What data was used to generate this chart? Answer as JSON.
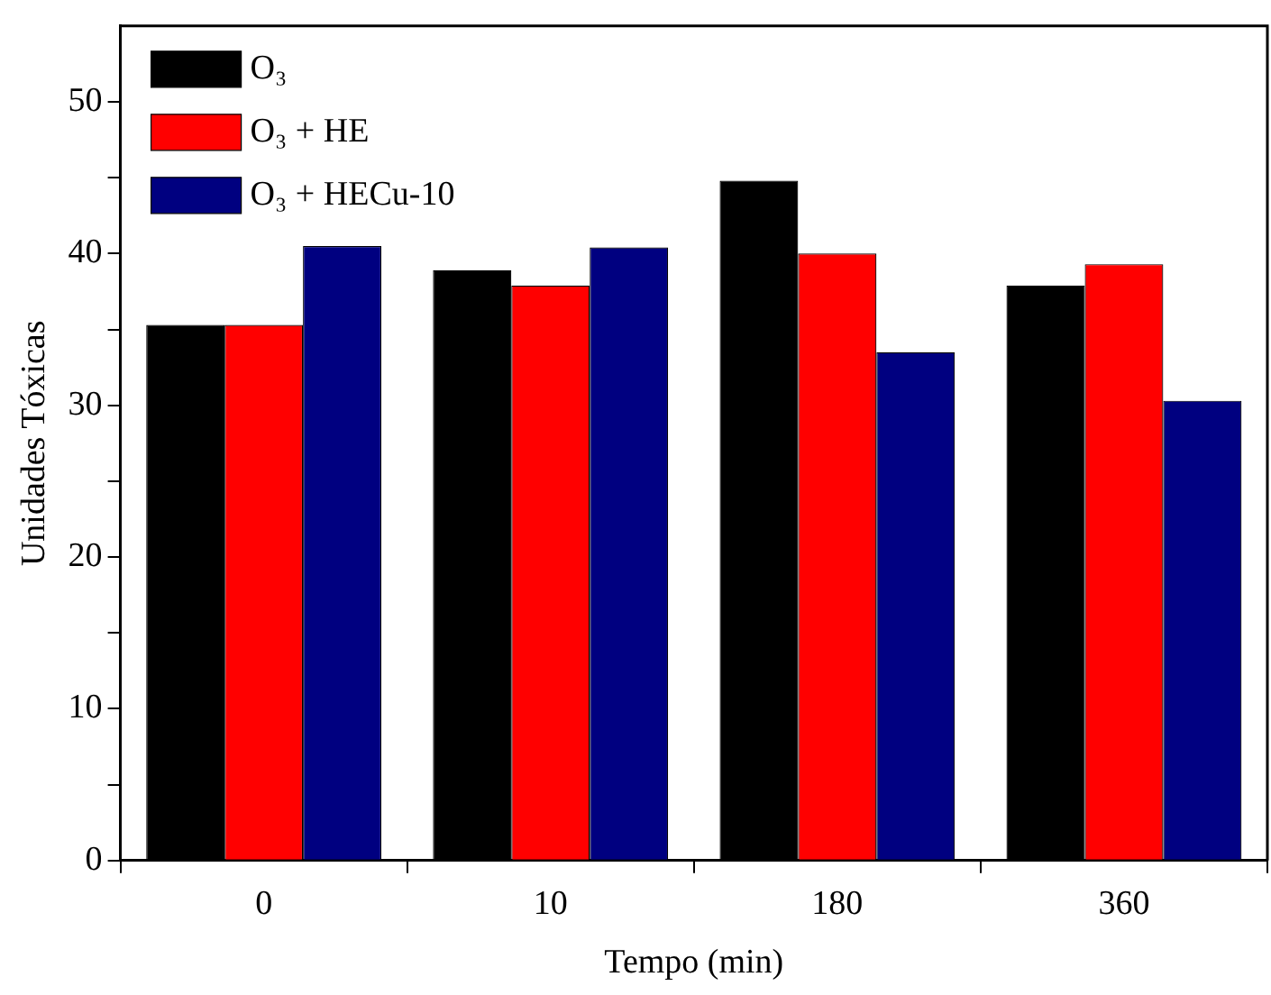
{
  "chart_data": {
    "type": "bar",
    "xlabel": "Tempo (min)",
    "ylabel": "Unidades Tóxicas",
    "categories": [
      "0",
      "10",
      "180",
      "360"
    ],
    "series": [
      {
        "name": "O₃",
        "color": "#000000",
        "values": [
          35.3,
          38.9,
          44.8,
          37.9
        ]
      },
      {
        "name": "O₃ + HE",
        "color": "#ff0000",
        "values": [
          35.3,
          37.9,
          40.0,
          39.3
        ]
      },
      {
        "name": "O₃ + HECu-10",
        "color": "#000080",
        "values": [
          40.5,
          40.4,
          33.5,
          30.3
        ]
      }
    ],
    "ylim": [
      0,
      55
    ],
    "yticks": [
      0,
      {
        "value": 5,
        "label": null
      },
      10,
      {
        "value": 15,
        "label": null
      },
      20,
      {
        "value": 25,
        "label": null
      },
      30,
      {
        "value": 35,
        "label": null
      },
      40,
      {
        "value": 45,
        "label": null
      },
      50
    ],
    "grid": false,
    "legend": "top left"
  }
}
